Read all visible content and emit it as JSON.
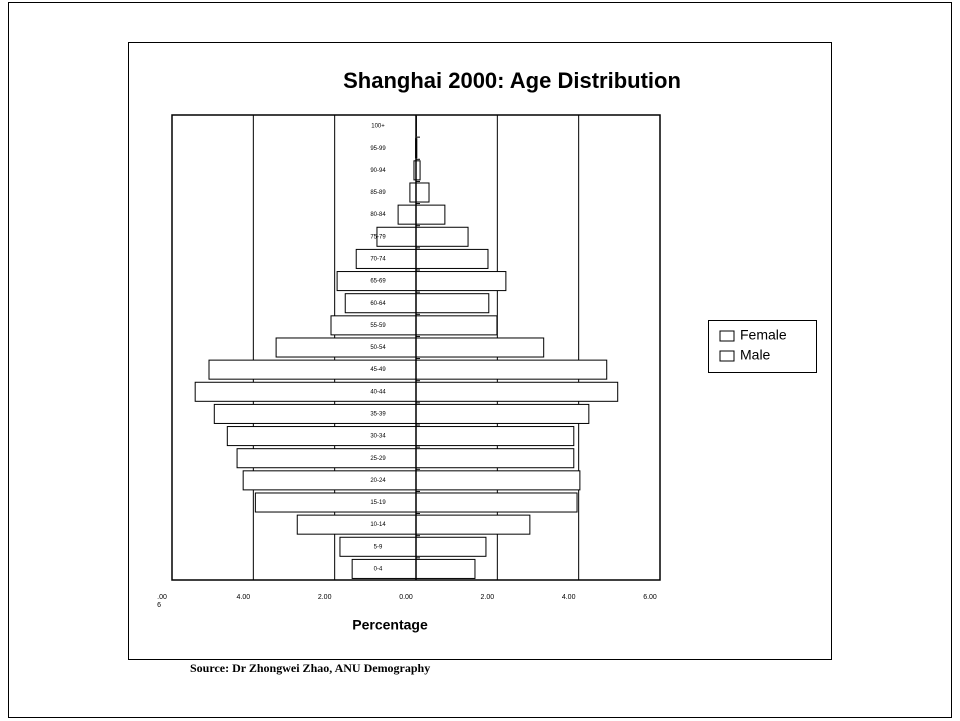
{
  "chart_data": {
    "type": "pyramid",
    "title": "Shanghai 2000: Age Distribution",
    "x_label": "Percentage",
    "source": "Source: Dr Zhongwei Zhao, ANU Demography",
    "categories": [
      "0-4",
      "5-9",
      "10-14",
      "15-19",
      "20-24",
      "25-29",
      "30-34",
      "35-39",
      "40-44",
      "45-49",
      "50-54",
      "55-59",
      "60-64",
      "65-69",
      "70-74",
      "75-79",
      "80-84",
      "85-89",
      "90-94",
      "95-99",
      "100+"
    ],
    "series": [
      {
        "name": "Female",
        "color": "#ffffff",
        "values": [
          1.45,
          1.72,
          2.8,
          3.96,
          4.03,
          3.88,
          3.88,
          4.25,
          4.96,
          4.69,
          3.14,
          1.99,
          1.79,
          2.21,
          1.77,
          1.28,
          0.71,
          0.32,
          0.1,
          0.02,
          0.01
        ]
      },
      {
        "name": "Male",
        "color": "#ffffff",
        "values": [
          -1.57,
          -1.87,
          -2.92,
          -3.95,
          -4.25,
          -4.4,
          -4.64,
          -4.96,
          -5.43,
          -5.09,
          -3.44,
          -2.09,
          -1.74,
          -1.94,
          -1.47,
          -0.96,
          -0.44,
          -0.15,
          -0.05,
          -0.01,
          0
        ]
      }
    ],
    "xlim": [
      -6,
      6
    ],
    "xticks": [
      {
        "value": -6,
        "label": ".00\n6"
      },
      {
        "value": -4,
        "label": "4.00"
      },
      {
        "value": -2,
        "label": "2.00"
      },
      {
        "value": 0,
        "label": "0.00"
      },
      {
        "value": 2,
        "label": "2.00"
      },
      {
        "value": 4,
        "label": "4.00"
      },
      {
        "value": 6,
        "label": "6.00"
      }
    ],
    "grid": true,
    "legend": "right"
  }
}
